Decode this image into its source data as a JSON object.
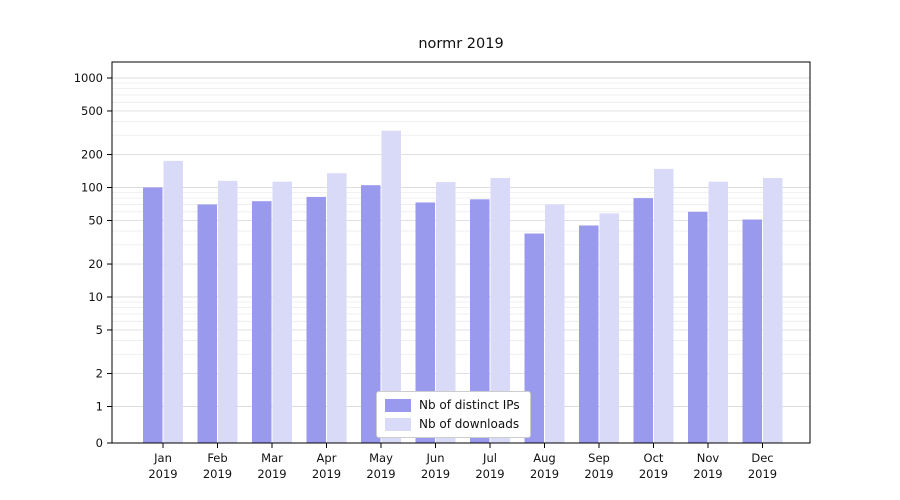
{
  "chart_data": {
    "type": "bar",
    "title": "normr 2019",
    "categories": [
      "Jan",
      "Feb",
      "Mar",
      "Apr",
      "May",
      "Jun",
      "Jul",
      "Aug",
      "Sep",
      "Oct",
      "Nov",
      "Dec"
    ],
    "year_label": "2019",
    "yscale": "log",
    "ylim": [
      0,
      1000
    ],
    "yticks": [
      0,
      1,
      2,
      5,
      10,
      20,
      50,
      100,
      200,
      500,
      1000
    ],
    "grid": true,
    "legend_position": "lower center",
    "series": [
      {
        "name": "Nb of distinct IPs",
        "color": "#9999ee",
        "values": [
          100,
          70,
          75,
          82,
          105,
          73,
          78,
          38,
          45,
          80,
          60,
          51
        ]
      },
      {
        "name": "Nb of downloads",
        "color": "#d9d9f8",
        "values": [
          175,
          115,
          113,
          135,
          330,
          112,
          122,
          70,
          58,
          148,
          113,
          122
        ]
      }
    ],
    "colors": {
      "axis": "#000000",
      "grid_major": "#dcdcdc",
      "grid_minor": "#ececec",
      "text": "#111111"
    }
  }
}
